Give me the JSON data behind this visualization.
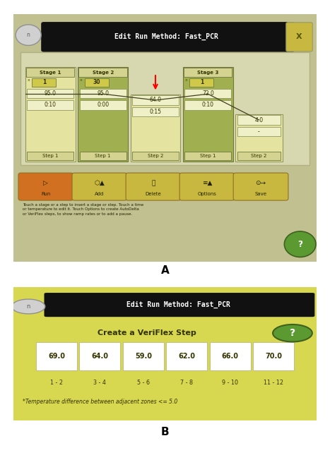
{
  "fig_bg": "#ffffff",
  "panel_A": {
    "title": "Edit Run Method: Fast_PCR",
    "title_bg": "#111111",
    "title_fg": "#ffffff",
    "body_bg": "#c0c090",
    "screen_bg": "#d8d8b0",
    "step_light": "#e8e8b0",
    "step_dark": "#a8b860",
    "step_border": "#808850",
    "btn_orange": "#d07020",
    "btn_yellow": "#c8b840",
    "label_A": "A"
  },
  "panel_B": {
    "title": "Edit Run Method: Fast_PCR",
    "title_bg": "#111111",
    "title_fg": "#ffffff",
    "body_bg": "#d8d850",
    "heading": "Create a VeriFlex Step",
    "temps": [
      "69.0",
      "64.0",
      "59.0",
      "62.0",
      "66.0",
      "70.0"
    ],
    "zones": [
      "1 - 2",
      "3 - 4",
      "5 - 6",
      "7 - 8",
      "9 - 10",
      "11 - 12"
    ],
    "footnote": "*Temperature difference between adjacent zones <= 5.0",
    "help_circle_bg": "#5a9a30",
    "label_B": "B"
  }
}
